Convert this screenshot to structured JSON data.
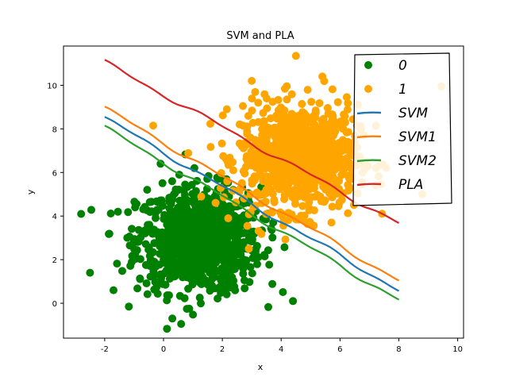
{
  "chart_data": {
    "type": "scatter",
    "title": "SVM and PLA",
    "xlabel": "x",
    "ylabel": "y",
    "xlim": [
      -3.4,
      10.2
    ],
    "ylim": [
      -1.6,
      11.8
    ],
    "xticks": [
      -2,
      0,
      2,
      4,
      6,
      8,
      10
    ],
    "yticks": [
      0,
      2,
      4,
      6,
      8,
      10
    ],
    "grid": false,
    "legend_position": "top-right",
    "scatter_series": [
      {
        "name": "0",
        "color": "#008000",
        "center": [
          1.2,
          2.9
        ],
        "spread": [
          1.05,
          1.2
        ],
        "count": 900,
        "outliers": [
          [
            -2.8,
            4.1
          ],
          [
            -2.5,
            1.4
          ],
          [
            -1.7,
            0.6
          ],
          [
            0.6,
            -0.95
          ],
          [
            0.3,
            -0.7
          ],
          [
            4.4,
            0.1
          ],
          [
            2.85,
            2.5
          ],
          [
            -0.1,
            6.4
          ],
          [
            1.05,
            6.2
          ]
        ]
      },
      {
        "name": "1",
        "color": "#FFA500",
        "center": [
          4.6,
          6.7
        ],
        "spread": [
          1.0,
          1.2
        ],
        "count": 900,
        "outliers": [
          [
            4.5,
            11.35
          ],
          [
            3.0,
            10.2
          ],
          [
            5.4,
            10.4
          ],
          [
            9.45,
            9.95
          ],
          [
            -0.35,
            8.15
          ],
          [
            2.2,
            3.9
          ],
          [
            2.85,
            3.55
          ],
          [
            2.9,
            2.5
          ],
          [
            8.8,
            5.0
          ]
        ]
      }
    ],
    "line_series": [
      {
        "name": "SVM",
        "color": "#1f77b4",
        "x_range": [
          -2,
          8
        ],
        "y_start": 8.5,
        "y_end": 0.6
      },
      {
        "name": "SVM1",
        "color": "#ff7f0e",
        "x_range": [
          -2,
          8
        ],
        "y_start": 8.95,
        "y_end": 1.05
      },
      {
        "name": "SVM2",
        "color": "#2ca02c",
        "x_range": [
          -2,
          8
        ],
        "y_start": 8.05,
        "y_end": 0.15
      },
      {
        "name": "PLA",
        "color": "#d62728",
        "x_range": [
          -2,
          8
        ],
        "y_start": 11.05,
        "y_end": 3.65
      }
    ],
    "legend": [
      {
        "label": "0",
        "kind": "marker",
        "color": "#008000"
      },
      {
        "label": "1",
        "kind": "marker",
        "color": "#FFA500"
      },
      {
        "label": "SVM",
        "kind": "line",
        "color": "#1f77b4"
      },
      {
        "label": "SVM1",
        "kind": "line",
        "color": "#ff7f0e"
      },
      {
        "label": "SVM2",
        "kind": "line",
        "color": "#2ca02c"
      },
      {
        "label": "PLA",
        "kind": "line",
        "color": "#d62728"
      }
    ]
  }
}
